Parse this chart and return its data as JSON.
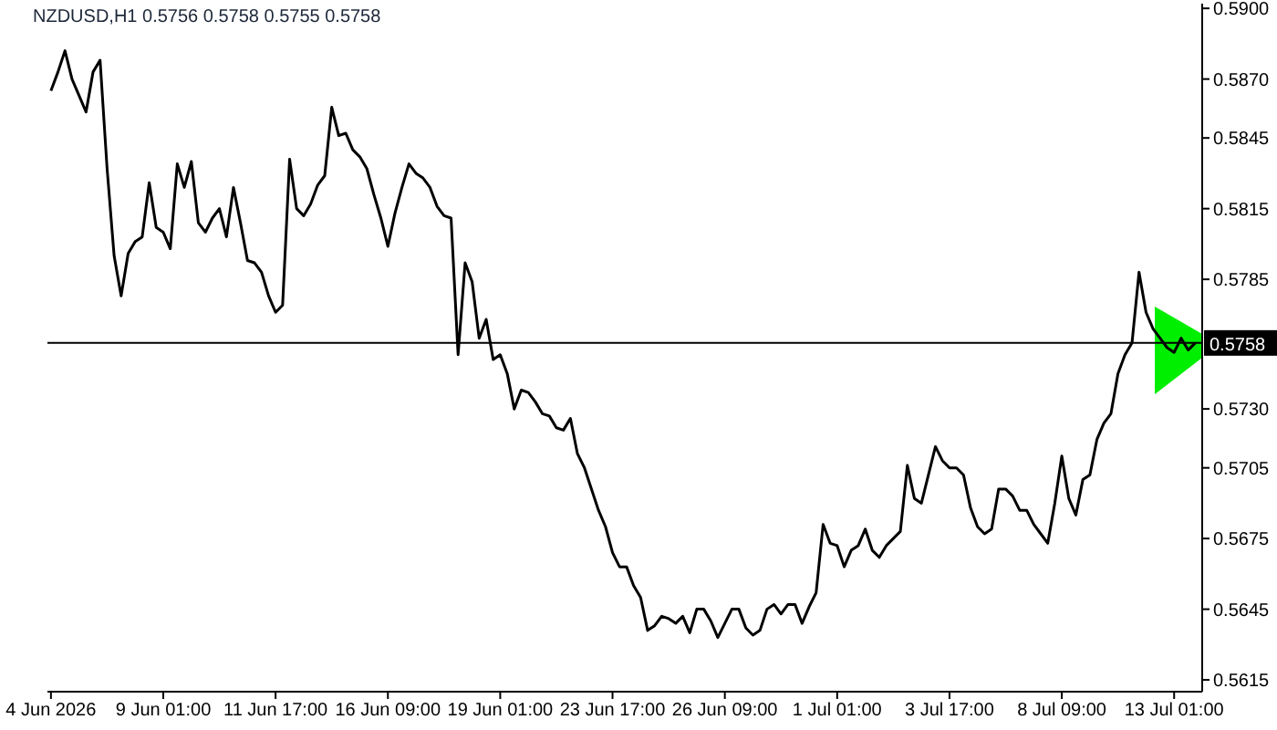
{
  "chart_data": {
    "type": "line",
    "title": "NZDUSD,H1 0.5756 0.5758 0.5755 0.5758",
    "color": "#000000",
    "categories": [
      "4 Jun 2026",
      null,
      null,
      null,
      null,
      null,
      null,
      null,
      null,
      null,
      null,
      null,
      null,
      null,
      null,
      null,
      "9 Jun 01:00",
      null,
      null,
      null,
      null,
      null,
      null,
      null,
      null,
      null,
      null,
      null,
      null,
      null,
      null,
      null,
      "11 Jun 17:00",
      null,
      null,
      null,
      null,
      null,
      null,
      null,
      null,
      null,
      null,
      null,
      null,
      null,
      null,
      null,
      "16 Jun 09:00",
      null,
      null,
      null,
      null,
      null,
      null,
      null,
      null,
      null,
      null,
      null,
      null,
      null,
      null,
      null,
      "19 Jun 01:00",
      null,
      null,
      null,
      null,
      null,
      null,
      null,
      null,
      null,
      null,
      null,
      null,
      null,
      null,
      null,
      "23 Jun 17:00",
      null,
      null,
      null,
      null,
      null,
      null,
      null,
      null,
      null,
      null,
      null,
      null,
      null,
      null,
      null,
      "26 Jun 09:00",
      null,
      null,
      null,
      null,
      null,
      null,
      null,
      null,
      null,
      null,
      null,
      null,
      null,
      null,
      null,
      "1 Jul 01:00",
      null,
      null,
      null,
      null,
      null,
      null,
      null,
      null,
      null,
      null,
      null,
      null,
      null,
      null,
      null,
      "3 Jul 17:00",
      null,
      null,
      null,
      null,
      null,
      null,
      null,
      null,
      null,
      null,
      null,
      null,
      null,
      null,
      null,
      "8 Jul 09:00",
      null,
      null,
      null,
      null,
      null,
      null,
      null,
      null,
      null,
      null,
      null,
      null,
      null,
      null,
      null,
      "13 Jul 01:00",
      null,
      null,
      null
    ],
    "values": [
      0.5865,
      0.5873,
      0.5882,
      0.587,
      0.5863,
      0.5856,
      0.5873,
      0.5878,
      0.5832,
      0.5795,
      0.5778,
      0.5796,
      0.5801,
      0.5803,
      0.5826,
      0.5807,
      0.5805,
      0.5798,
      0.5834,
      0.5824,
      0.5835,
      0.5809,
      0.5805,
      0.5811,
      0.5815,
      0.5803,
      0.5824,
      0.5809,
      0.5793,
      0.5792,
      0.5788,
      0.5778,
      0.5771,
      0.5774,
      0.5836,
      0.5815,
      0.5812,
      0.5817,
      0.5825,
      0.5829,
      0.5858,
      0.5846,
      0.5847,
      0.584,
      0.5837,
      0.5832,
      0.5821,
      0.5811,
      0.5799,
      0.5813,
      0.5824,
      0.5834,
      0.583,
      0.5828,
      0.5824,
      0.5816,
      0.5812,
      0.5811,
      0.5753,
      0.5792,
      0.5784,
      0.576,
      0.5768,
      0.5751,
      0.5753,
      0.5745,
      0.573,
      0.5738,
      0.5737,
      0.5733,
      0.5728,
      0.5727,
      0.5722,
      0.5721,
      0.5726,
      0.5711,
      0.5705,
      0.5696,
      0.5687,
      0.568,
      0.5669,
      0.5663,
      0.5663,
      0.5655,
      0.565,
      0.5636,
      0.5638,
      0.5642,
      0.5641,
      0.5639,
      0.5642,
      0.5635,
      0.5645,
      0.5645,
      0.564,
      0.5633,
      0.5639,
      0.5645,
      0.5645,
      0.5637,
      0.5634,
      0.5636,
      0.5645,
      0.5647,
      0.5643,
      0.5647,
      0.5647,
      0.5639,
      0.5646,
      0.5652,
      0.5681,
      0.5673,
      0.5672,
      0.5663,
      0.567,
      0.5672,
      0.5679,
      0.567,
      0.5667,
      0.5672,
      0.5675,
      0.5678,
      0.5706,
      0.5692,
      0.569,
      0.5702,
      0.5714,
      0.5708,
      0.5705,
      0.5705,
      0.5702,
      0.5688,
      0.568,
      0.5677,
      0.5679,
      0.5696,
      0.5696,
      0.5693,
      0.5687,
      0.5687,
      0.5681,
      0.5677,
      0.5673,
      0.569,
      0.571,
      0.5692,
      0.5685,
      0.57,
      0.5702,
      0.5717,
      0.5724,
      0.5728,
      0.5745,
      0.5753,
      0.5758,
      0.5788,
      0.5771,
      0.5764,
      0.576,
      0.5756,
      0.5754,
      0.576,
      0.5755,
      0.5758
    ],
    "ylim": [
      0.561,
      0.5902
    ],
    "yticks": [
      0.5615,
      0.5645,
      0.5675,
      0.5705,
      {
        "value": 0.573,
        "label": "0.5730"
      },
      0.5785,
      0.5815,
      0.5845,
      {
        "value": 0.587,
        "label": "0.5870"
      },
      {
        "value": 0.59,
        "label": "0.5900"
      }
    ],
    "ref_lines": [
      {
        "axis": "y",
        "value": 0.5758,
        "label": "0.5758",
        "color": "#000000"
      }
    ]
  }
}
